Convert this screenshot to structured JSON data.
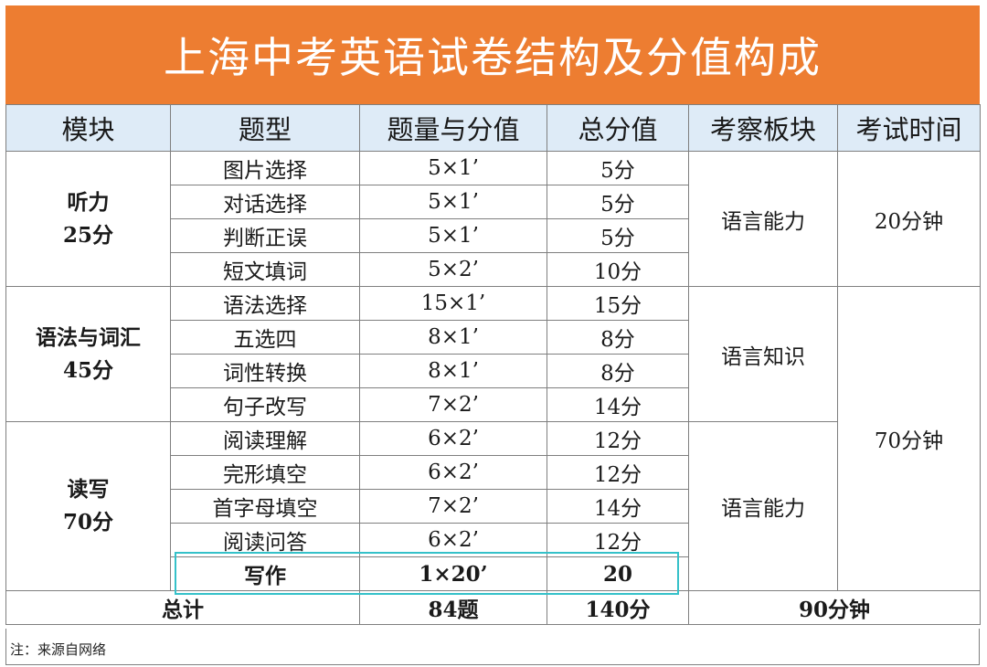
{
  "title": "上海中考英语试卷结构及分值构成",
  "headers": [
    "模块",
    "题型",
    "题量与分值",
    "总分值",
    "考察板块",
    "考试时间"
  ],
  "modules": [
    {
      "name": "听力",
      "score": "25分",
      "section": "语言能力",
      "items": [
        {
          "type": "图片选择",
          "qty": "5×1’",
          "total": "5分"
        },
        {
          "type": "对话选择",
          "qty": "5×1’",
          "total": "5分"
        },
        {
          "type": "判断正误",
          "qty": "5×1’",
          "total": "5分"
        },
        {
          "type": "短文填词",
          "qty": "5×2’",
          "total": "10分"
        }
      ]
    },
    {
      "name": "语法与词汇",
      "score": "45分",
      "section": "语言知识",
      "items": [
        {
          "type": "语法选择",
          "qty": "15×1’",
          "total": "15分"
        },
        {
          "type": "五选四",
          "qty": "8×1’",
          "total": "8分"
        },
        {
          "type": "词性转换",
          "qty": "8×1’",
          "total": "8分"
        },
        {
          "type": "句子改写",
          "qty": "7×2’",
          "total": "14分"
        }
      ]
    },
    {
      "name": "读写",
      "score": "70分",
      "section": "语言能力",
      "items": [
        {
          "type": "阅读理解",
          "qty": "6×2’",
          "total": "12分"
        },
        {
          "type": "完形填空",
          "qty": "6×2’",
          "total": "12分"
        },
        {
          "type": "首字母填空",
          "qty": "7×2’",
          "total": "14分"
        },
        {
          "type": "阅读问答",
          "qty": "6×2’",
          "total": "12分"
        },
        {
          "type": "写作",
          "qty": "1×20’",
          "total": "20"
        }
      ]
    }
  ],
  "times": {
    "listening": "20分钟",
    "written": "70分钟"
  },
  "totals": {
    "label": "总计",
    "questions": "84题",
    "score": "140分",
    "time": "90分钟"
  },
  "note": "注：来源自网络",
  "colors": {
    "title_bg": "#ed7d31",
    "header_bg": "#deebf7",
    "module_text": "#d32f2f",
    "highlight": "#35c1c9"
  }
}
